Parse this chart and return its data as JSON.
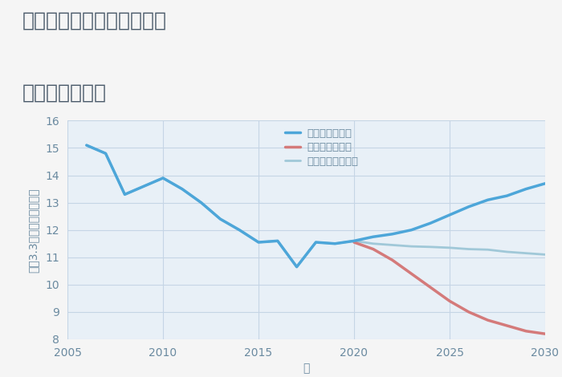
{
  "title_line1": "三重県桑名市長島町平方の",
  "title_line2": "土地の価格推移",
  "xlabel": "年",
  "ylabel_parts": [
    "坪（3.3㎡）単価（万円）"
  ],
  "ylim": [
    8,
    16
  ],
  "xlim": [
    2005,
    2030
  ],
  "yticks": [
    8,
    9,
    10,
    11,
    12,
    13,
    14,
    15,
    16
  ],
  "xticks": [
    2005,
    2010,
    2015,
    2020,
    2025,
    2030
  ],
  "title_bg_color": "#f5f5f5",
  "background_color": "#f5f5f5",
  "plot_bg_color": "#e8f0f7",
  "grid_color": "#c5d5e5",
  "good_scenario": {
    "label": "グッドシナリオ",
    "color": "#4da6d9",
    "linewidth": 2.5,
    "x": [
      2006,
      2007,
      2008,
      2009,
      2010,
      2011,
      2012,
      2013,
      2014,
      2015,
      2016,
      2017,
      2018,
      2019,
      2020,
      2021,
      2022,
      2023,
      2024,
      2025,
      2026,
      2027,
      2028,
      2029,
      2030
    ],
    "y": [
      15.1,
      14.8,
      13.3,
      13.6,
      13.9,
      13.5,
      13.0,
      12.4,
      12.0,
      11.55,
      11.6,
      10.65,
      11.55,
      11.5,
      11.6,
      11.75,
      11.85,
      12.0,
      12.25,
      12.55,
      12.85,
      13.1,
      13.25,
      13.5,
      13.7
    ]
  },
  "bad_scenario": {
    "label": "バッドシナリオ",
    "color": "#d47a7a",
    "linewidth": 2.5,
    "x": [
      2020,
      2021,
      2022,
      2023,
      2024,
      2025,
      2026,
      2027,
      2028,
      2029,
      2030
    ],
    "y": [
      11.55,
      11.3,
      10.9,
      10.4,
      9.9,
      9.4,
      9.0,
      8.7,
      8.5,
      8.3,
      8.2
    ]
  },
  "normal_scenario": {
    "label": "ノーマルシナリオ",
    "color": "#a0c8d8",
    "linewidth": 2.0,
    "x": [
      2006,
      2007,
      2008,
      2009,
      2010,
      2011,
      2012,
      2013,
      2014,
      2015,
      2016,
      2017,
      2018,
      2019,
      2020,
      2021,
      2022,
      2023,
      2024,
      2025,
      2026,
      2027,
      2028,
      2029,
      2030
    ],
    "y": [
      15.1,
      14.8,
      13.3,
      13.6,
      13.9,
      13.5,
      13.0,
      12.4,
      12.0,
      11.55,
      11.6,
      10.65,
      11.55,
      11.5,
      11.6,
      11.5,
      11.45,
      11.4,
      11.38,
      11.35,
      11.3,
      11.28,
      11.2,
      11.15,
      11.1
    ]
  },
  "title_color": "#4a5a6a",
  "axis_color": "#6a8aa0",
  "tick_color": "#6a8aa0",
  "title_fontsize": 18,
  "tick_fontsize": 10,
  "label_fontsize": 10
}
